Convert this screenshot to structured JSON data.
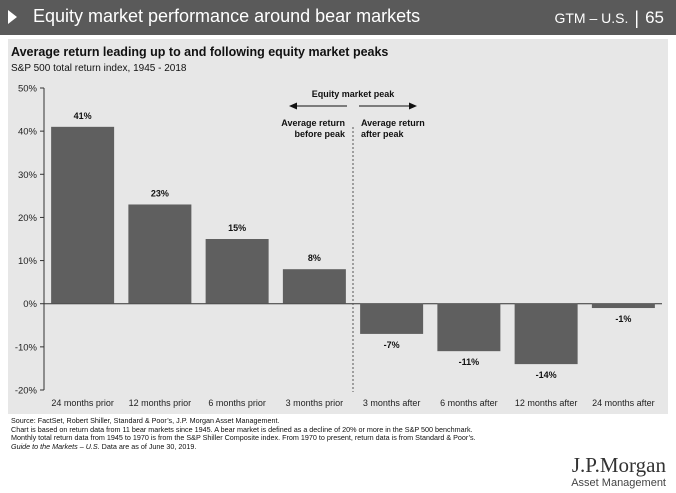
{
  "header": {
    "title": "Equity market performance around bear markets",
    "gtm": "GTM – U.S.",
    "page": "65"
  },
  "chart_data": {
    "type": "bar",
    "title": "Average return leading up to and following equity market peaks",
    "subtitle": "S&P 500 total return index, 1945 - 2018",
    "categories": [
      "24 months prior",
      "12 months prior",
      "6 months prior",
      "3 months prior",
      "3 months after",
      "6 months after",
      "12 months after",
      "24 months after"
    ],
    "values": [
      41,
      23,
      15,
      8,
      -7,
      -11,
      -14,
      -1
    ],
    "value_labels": [
      "41%",
      "23%",
      "15%",
      "8%",
      "-7%",
      "-11%",
      "-14%",
      "-1%"
    ],
    "ylim": [
      -20,
      50
    ],
    "yticks": [
      -20,
      -10,
      0,
      10,
      20,
      30,
      40,
      50
    ],
    "ytick_labels": [
      "-20%",
      "-10%",
      "0%",
      "10%",
      "20%",
      "30%",
      "40%",
      "50%"
    ],
    "bar_color": "#5f5f5f",
    "peak_divider_after_index": 3,
    "annotations": {
      "peak": "Equity market peak",
      "before": [
        "Average return",
        "before peak"
      ],
      "after": [
        "Average return",
        "after peak"
      ]
    }
  },
  "footnotes": [
    "Source: FactSet, Robert Shiller, Standard & Poor’s, J.P. Morgan Asset Management.",
    "Chart is based on return data from 11 bear markets since 1945. A bear market is defined as a decline of 20% or more in the S&P 500 benchmark.",
    "Monthly total return data from 1945 to 1970 is from the S&P Shiller Composite index. From 1970 to present, return data is from Standard & Poor’s."
  ],
  "footnote_last": {
    "italic": "Guide to the Markets – U.S.",
    "rest": " Data are as of June 30, 2019."
  },
  "logo": {
    "main": "J.P.Morgan",
    "sub": "Asset Management"
  }
}
